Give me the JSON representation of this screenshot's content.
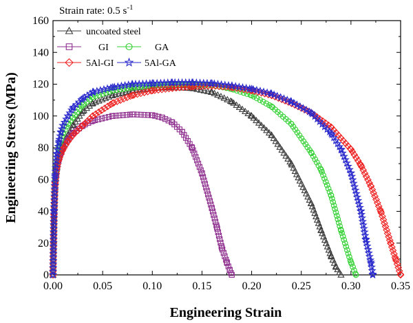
{
  "chart_data": {
    "type": "scatter",
    "annotation": "Strain rate: 0.5 s",
    "annotation_sup": "-1",
    "xlabel": "Engineering Strain",
    "ylabel": "Engineering Stress (MPa)",
    "xlim": [
      0.0,
      0.35
    ],
    "ylim": [
      0,
      160
    ],
    "xticks": [
      "0.00",
      "0.05",
      "0.10",
      "0.15",
      "0.20",
      "0.25",
      "0.30",
      "0.35"
    ],
    "yticks": [
      "0",
      "20",
      "40",
      "60",
      "80",
      "100",
      "120",
      "140",
      "160"
    ],
    "grid": false,
    "legend_position": "top-left",
    "series": [
      {
        "name": "uncoated steel",
        "marker": "triangle",
        "color": "#3a3a3a",
        "x": [
          0,
          0.001,
          0.002,
          0.004,
          0.006,
          0.008,
          0.01,
          0.015,
          0.02,
          0.03,
          0.04,
          0.06,
          0.08,
          0.1,
          0.12,
          0.14,
          0.16,
          0.18,
          0.2,
          0.22,
          0.24,
          0.26,
          0.27,
          0.28,
          0.285,
          0.29
        ],
        "y": [
          0,
          35,
          55,
          68,
          74,
          78,
          82,
          88,
          94,
          103,
          108,
          113,
          116,
          117.5,
          118,
          117.5,
          115,
          109,
          100,
          88,
          70,
          45,
          28,
          12,
          5,
          0
        ]
      },
      {
        "name": "GI",
        "marker": "square",
        "color": "#8e2e8e",
        "x": [
          0,
          0.001,
          0.002,
          0.004,
          0.006,
          0.008,
          0.01,
          0.015,
          0.02,
          0.03,
          0.04,
          0.06,
          0.08,
          0.1,
          0.11,
          0.12,
          0.13,
          0.14,
          0.15,
          0.16,
          0.165,
          0.17,
          0.175,
          0.178,
          0.18
        ],
        "y": [
          0,
          35,
          55,
          68,
          73,
          77,
          80,
          85,
          89,
          94,
          97,
          100,
          101,
          100.5,
          99,
          96,
          90,
          80,
          64,
          42,
          30,
          17,
          8,
          3,
          0
        ]
      },
      {
        "name": "GA",
        "marker": "circle",
        "color": "#33d133",
        "x": [
          0,
          0.001,
          0.002,
          0.004,
          0.006,
          0.008,
          0.01,
          0.015,
          0.02,
          0.03,
          0.04,
          0.06,
          0.08,
          0.1,
          0.12,
          0.14,
          0.16,
          0.18,
          0.2,
          0.22,
          0.24,
          0.26,
          0.27,
          0.28,
          0.29,
          0.3,
          0.305
        ],
        "y": [
          0,
          38,
          60,
          72,
          80,
          85,
          89,
          95,
          99,
          107,
          112,
          116,
          118,
          119,
          120,
          120,
          119.5,
          117,
          113,
          106,
          95,
          77,
          66,
          50,
          28,
          8,
          0
        ]
      },
      {
        "name": "5Al-GI",
        "marker": "diamond",
        "color": "#ee2020",
        "x": [
          0,
          0.001,
          0.002,
          0.004,
          0.006,
          0.008,
          0.01,
          0.015,
          0.02,
          0.03,
          0.04,
          0.06,
          0.08,
          0.1,
          0.12,
          0.14,
          0.16,
          0.18,
          0.2,
          0.22,
          0.24,
          0.26,
          0.28,
          0.3,
          0.31,
          0.32,
          0.33,
          0.34,
          0.345,
          0.35
        ],
        "y": [
          0,
          38,
          58,
          68,
          73,
          76,
          79,
          84,
          88,
          94,
          100,
          108,
          113,
          116,
          117.5,
          118.5,
          119,
          118,
          116,
          113,
          108,
          102,
          93,
          79,
          69,
          56,
          40,
          20,
          10,
          0
        ]
      },
      {
        "name": "5Al-GA",
        "marker": "star",
        "color": "#2a2acc",
        "x": [
          0,
          0.001,
          0.002,
          0.004,
          0.006,
          0.008,
          0.01,
          0.015,
          0.02,
          0.03,
          0.04,
          0.06,
          0.08,
          0.1,
          0.12,
          0.14,
          0.16,
          0.18,
          0.2,
          0.22,
          0.24,
          0.26,
          0.28,
          0.29,
          0.3,
          0.31,
          0.315,
          0.32,
          0.322
        ],
        "y": [
          0,
          40,
          62,
          76,
          84,
          90,
          94,
          100,
          105,
          111,
          115,
          118,
          120,
          120.5,
          121,
          121,
          120.5,
          119,
          117,
          114,
          109,
          102,
          89,
          79,
          64,
          40,
          22,
          8,
          0
        ]
      }
    ]
  }
}
